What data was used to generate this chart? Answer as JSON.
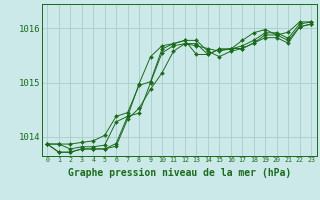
{
  "background_color": "#cce9e9",
  "plot_bg_color": "#cce9e9",
  "grid_color": "#aacccc",
  "line_color": "#1a6b1a",
  "marker_color": "#1a6b1a",
  "xlabel": "Graphe pression niveau de la mer (hPa)",
  "xlabel_fontsize": 7,
  "ylim": [
    1013.65,
    1016.45
  ],
  "xlim": [
    -0.5,
    23.5
  ],
  "yticks": [
    1014,
    1015,
    1016
  ],
  "xtick_labels": [
    "0",
    "1",
    "2",
    "3",
    "4",
    "5",
    "6",
    "7",
    "8",
    "9",
    "10",
    "11",
    "12",
    "13",
    "14",
    "15",
    "16",
    "17",
    "18",
    "19",
    "20",
    "21",
    "22",
    "23"
  ],
  "series": [
    [
      1013.87,
      1013.87,
      1013.78,
      1013.82,
      1013.82,
      1013.85,
      1014.28,
      1014.38,
      1014.44,
      1015.0,
      1015.55,
      1015.68,
      1015.72,
      1015.72,
      1015.52,
      1015.62,
      1015.62,
      1015.68,
      1015.78,
      1015.92,
      1015.92,
      1015.82,
      1016.08,
      1016.12
    ],
    [
      1013.87,
      1013.72,
      1013.72,
      1013.78,
      1013.78,
      1013.78,
      1013.83,
      1014.33,
      1014.53,
      1014.88,
      1015.18,
      1015.58,
      1015.72,
      1015.68,
      1015.63,
      1015.58,
      1015.63,
      1015.63,
      1015.73,
      1015.83,
      1015.83,
      1015.73,
      1016.03,
      1016.08
    ],
    [
      1013.87,
      1013.87,
      1013.87,
      1013.9,
      1013.93,
      1014.03,
      1014.38,
      1014.45,
      1014.95,
      1015.02,
      1015.62,
      1015.72,
      1015.78,
      1015.52,
      1015.52,
      1015.62,
      1015.62,
      1015.78,
      1015.92,
      1015.98,
      1015.88,
      1015.93,
      1016.12,
      1016.12
    ],
    [
      1013.87,
      1013.72,
      1013.72,
      1013.78,
      1013.78,
      1013.78,
      1013.88,
      1014.38,
      1014.98,
      1015.48,
      1015.68,
      1015.72,
      1015.78,
      1015.78,
      1015.58,
      1015.48,
      1015.58,
      1015.63,
      1015.73,
      1015.88,
      1015.88,
      1015.78,
      1016.03,
      1016.08
    ]
  ]
}
